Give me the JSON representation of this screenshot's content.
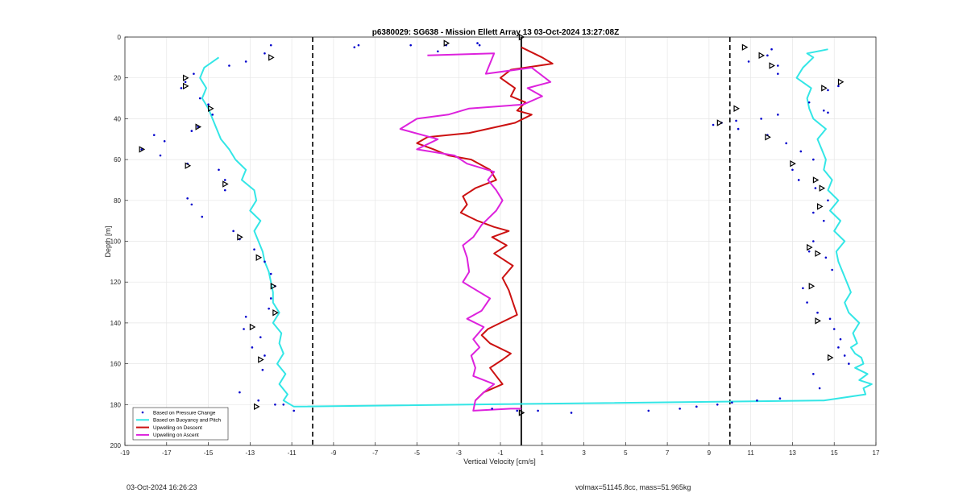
{
  "chart_data": {
    "type": "line",
    "title": "p6380029: SG638 - Mission Ellett Array 13 03-Oct-2024 13:27:08Z",
    "xlabel": "Vertical Velocity [cm/s]",
    "ylabel": "Depth [m]",
    "xlim": [
      -19,
      17
    ],
    "ylim": [
      0,
      200
    ],
    "y_reversed": true,
    "grid": true,
    "legend_position": "bottom-left",
    "xticks": [
      -19,
      -17,
      -15,
      -13,
      -11,
      -9,
      -7,
      -5,
      -3,
      -1,
      1,
      3,
      5,
      7,
      9,
      11,
      13,
      15,
      17
    ],
    "yticks": [
      0,
      20,
      40,
      60,
      80,
      100,
      120,
      140,
      160,
      180,
      200
    ],
    "reference_lines": [
      {
        "x": -10,
        "style": "dashed"
      },
      {
        "x": 10,
        "style": "dashed"
      },
      {
        "x": 0,
        "style": "solid"
      }
    ],
    "colors": {
      "pressure": "#0000cc",
      "buoyancy": "#33e6e6",
      "descent": "#cc1111",
      "ascent": "#dd22dd"
    },
    "series": [
      {
        "name": "Based on Pressure Change",
        "kind": "points",
        "x": [
          -12.0,
          -12.3,
          -13.2,
          -14.0,
          -15.7,
          -16.1,
          -16.3,
          -15.4,
          -15.0,
          -14.8,
          -15.5,
          -15.8,
          -17.6,
          -17.1,
          -18.2,
          -17.3,
          -16.0,
          -14.5,
          -14.2,
          -14.2,
          -16.0,
          -15.8,
          -15.3,
          -13.8,
          -13.5,
          -12.8,
          -12.3,
          -12.0,
          -11.8,
          -12.0,
          -12.1,
          -13.2,
          -13.3,
          -12.5,
          -12.9,
          -12.3,
          -12.4,
          -13.5,
          -12.6,
          -11.4,
          -11.8,
          -10.9,
          -7.8,
          -5.3,
          -3.6,
          -2.1,
          -1.4,
          -0.2,
          0.8,
          2.4,
          6.1,
          7.6,
          8.4,
          9.4,
          10.1,
          11.3,
          12.4,
          13.8,
          14.5,
          14.7,
          12.3,
          11.5,
          10.3,
          9.6,
          9.2,
          10.4,
          11.8,
          12.7,
          13.4,
          14.0,
          13.0,
          13.3,
          14.1,
          14.7,
          14.0,
          14.5,
          14.0,
          13.8,
          14.6,
          14.9,
          13.5,
          13.7,
          14.2,
          14.8,
          15.0,
          15.3,
          15.2,
          15.5,
          15.7,
          14.0,
          14.3,
          11.8,
          10.9,
          12.3,
          12.3,
          12.0,
          15.2,
          14.7,
          -8.0,
          -4.0,
          -2.0
        ],
        "y": [
          4,
          8,
          12,
          14,
          18,
          22,
          25,
          30,
          33,
          38,
          44,
          46,
          48,
          51,
          55,
          58,
          62,
          65,
          70,
          75,
          79,
          82,
          88,
          95,
          99,
          104,
          110,
          116,
          122,
          128,
          133,
          137,
          143,
          147,
          152,
          156,
          163,
          174,
          178,
          180,
          180,
          183,
          4,
          4,
          4,
          3,
          182,
          183,
          183,
          184,
          183,
          182,
          181,
          180,
          179,
          178,
          177,
          32,
          36,
          37,
          38,
          40,
          41,
          42,
          43,
          45,
          48,
          52,
          56,
          60,
          65,
          70,
          74,
          80,
          86,
          90,
          100,
          105,
          108,
          114,
          123,
          130,
          135,
          138,
          143,
          148,
          152,
          156,
          160,
          165,
          172,
          9,
          12,
          14,
          18,
          6,
          24,
          26,
          5,
          7,
          4
        ]
      },
      {
        "name": "Based on Buoyancy and Pitch",
        "kind": "line",
        "x": [
          -14.5,
          -15.2,
          -15.4,
          -15.1,
          -15.3,
          -15.0,
          -14.8,
          -14.6,
          -14.4,
          -14.0,
          -13.7,
          -13.2,
          -13.4,
          -12.8,
          -12.7,
          -13.0,
          -12.5,
          -12.8,
          -12.6,
          -12.4,
          -12.3,
          -12.1,
          -12.0,
          -11.9,
          -11.9,
          -11.6,
          -11.9,
          -11.5,
          -11.6,
          -11.4,
          -11.7,
          -11.3,
          -11.6,
          -11.2,
          -11.4,
          -10.9,
          14.5,
          16.5,
          16.4,
          16.8,
          16.2,
          16.6,
          16.0,
          16.4,
          16.3,
          16.0,
          15.8,
          16.1,
          15.9,
          16.2,
          15.7,
          15.5,
          15.8,
          15.6,
          15.4,
          15.2,
          15.1,
          15.5,
          15.0,
          15.3,
          14.8,
          15.2,
          14.7,
          14.9,
          14.5,
          14.6,
          14.4,
          14.2,
          14.6,
          14.0,
          13.8,
          13.7,
          13.9,
          13.2,
          13.5,
          14.0,
          13.7,
          14.7
        ],
        "y": [
          10,
          15,
          20,
          25,
          30,
          35,
          40,
          45,
          50,
          55,
          60,
          65,
          70,
          75,
          80,
          85,
          90,
          95,
          100,
          105,
          110,
          115,
          120,
          125,
          130,
          135,
          140,
          145,
          150,
          155,
          160,
          165,
          170,
          175,
          178,
          181,
          178,
          175,
          172,
          170,
          168,
          165,
          162,
          160,
          157,
          155,
          152,
          150,
          145,
          140,
          135,
          130,
          125,
          120,
          115,
          110,
          105,
          100,
          95,
          90,
          85,
          80,
          75,
          70,
          65,
          60,
          55,
          50,
          45,
          40,
          35,
          30,
          25,
          20,
          15,
          10,
          8,
          6
        ]
      },
      {
        "name": "Upwelling on Descent",
        "kind": "line",
        "x": [
          0.0,
          1.0,
          1.5,
          -0.5,
          -1.0,
          -0.3,
          -0.5,
          0.2,
          -0.2,
          0.5,
          -0.3,
          -2.5,
          -4.5,
          -5.0,
          -4.2,
          -3.5,
          -2.4,
          -1.5,
          -1.2,
          -2.2,
          -2.8,
          -2.6,
          -2.9,
          -2.5,
          -2.1,
          -1.3,
          -0.6,
          -1.4,
          -0.7,
          -1.3,
          -0.4,
          -0.9,
          -0.6,
          -0.4,
          -0.2,
          -1.0,
          -1.6,
          -1.9,
          -1.5,
          -0.5,
          -0.9,
          -1.5,
          -1.2,
          -0.9,
          -1.8,
          -2.2
        ],
        "y": [
          5,
          10,
          13,
          16,
          20,
          25,
          29,
          32,
          36,
          38,
          42,
          47,
          49,
          52,
          55,
          58,
          60,
          65,
          70,
          74,
          78,
          82,
          86,
          88,
          90,
          93,
          95,
          98,
          102,
          106,
          112,
          118,
          124,
          130,
          136,
          140,
          143,
          146,
          150,
          155,
          158,
          162,
          166,
          170,
          174,
          178
        ]
      },
      {
        "name": "Upwelling on Ascent",
        "kind": "line",
        "x": [
          -4.5,
          -1.3,
          -1.7,
          0.5,
          1.4,
          0.3,
          1.0,
          0.1,
          -2.5,
          -3.5,
          -5.0,
          -5.8,
          -4.0,
          -5.0,
          -3.2,
          -2.6,
          -1.3,
          -1.6,
          -1.2,
          -0.9,
          -1.2,
          -1.9,
          -2.3,
          -2.8,
          -2.6,
          -2.5,
          -2.8,
          -1.5,
          -1.9,
          -2.6,
          -1.8,
          -2.3,
          -2.0,
          -2.4,
          -2.2,
          -2.3,
          -1.3,
          -1.8,
          -2.2,
          -2.3,
          -0.5,
          0.0
        ],
        "y": [
          9,
          8,
          18,
          15,
          22,
          25,
          29,
          33,
          35,
          38,
          40,
          45,
          50,
          55,
          58,
          62,
          66,
          70,
          75,
          80,
          85,
          92,
          98,
          102,
          108,
          115,
          120,
          128,
          134,
          138,
          142,
          148,
          152,
          156,
          162,
          166,
          170,
          174,
          178,
          183,
          182,
          182
        ]
      }
    ],
    "markers": {
      "x": [
        -12.0,
        -16.1,
        -16.1,
        -14.9,
        -15.5,
        -18.2,
        -16.0,
        -14.2,
        -13.5,
        -12.6,
        -11.9,
        -11.8,
        -12.9,
        -12.5,
        -12.7,
        10.7,
        11.5,
        15.3,
        14.5,
        10.3,
        9.5,
        11.8,
        13.0,
        14.1,
        14.4,
        14.3,
        13.8,
        14.2,
        13.9,
        14.2,
        14.8,
        12.0,
        0.0,
        0.0,
        -3.6
      ],
      "y": [
        10,
        20,
        24,
        35,
        44,
        55,
        63,
        72,
        98,
        108,
        122,
        135,
        142,
        158,
        181,
        5,
        9,
        22,
        25,
        35,
        42,
        49,
        62,
        70,
        74,
        83,
        103,
        106,
        122,
        139,
        157,
        14,
        0,
        184,
        3
      ]
    },
    "legend": [
      {
        "label": "Based on Pressure Change",
        "color": "#0000cc",
        "symbol": "dot"
      },
      {
        "label": "Based on Buoyancy and Pitch",
        "color": "#33e6e6",
        "symbol": "line"
      },
      {
        "label": "Upwelling on Descent",
        "color": "#cc1111",
        "symbol": "line"
      },
      {
        "label": "Upwelling on Ascent",
        "color": "#dd22dd",
        "symbol": "line"
      }
    ]
  },
  "footer": {
    "left": "03-Oct-2024 16:26:23",
    "right": "volmax=51145.8cc, mass=51.965kg"
  }
}
